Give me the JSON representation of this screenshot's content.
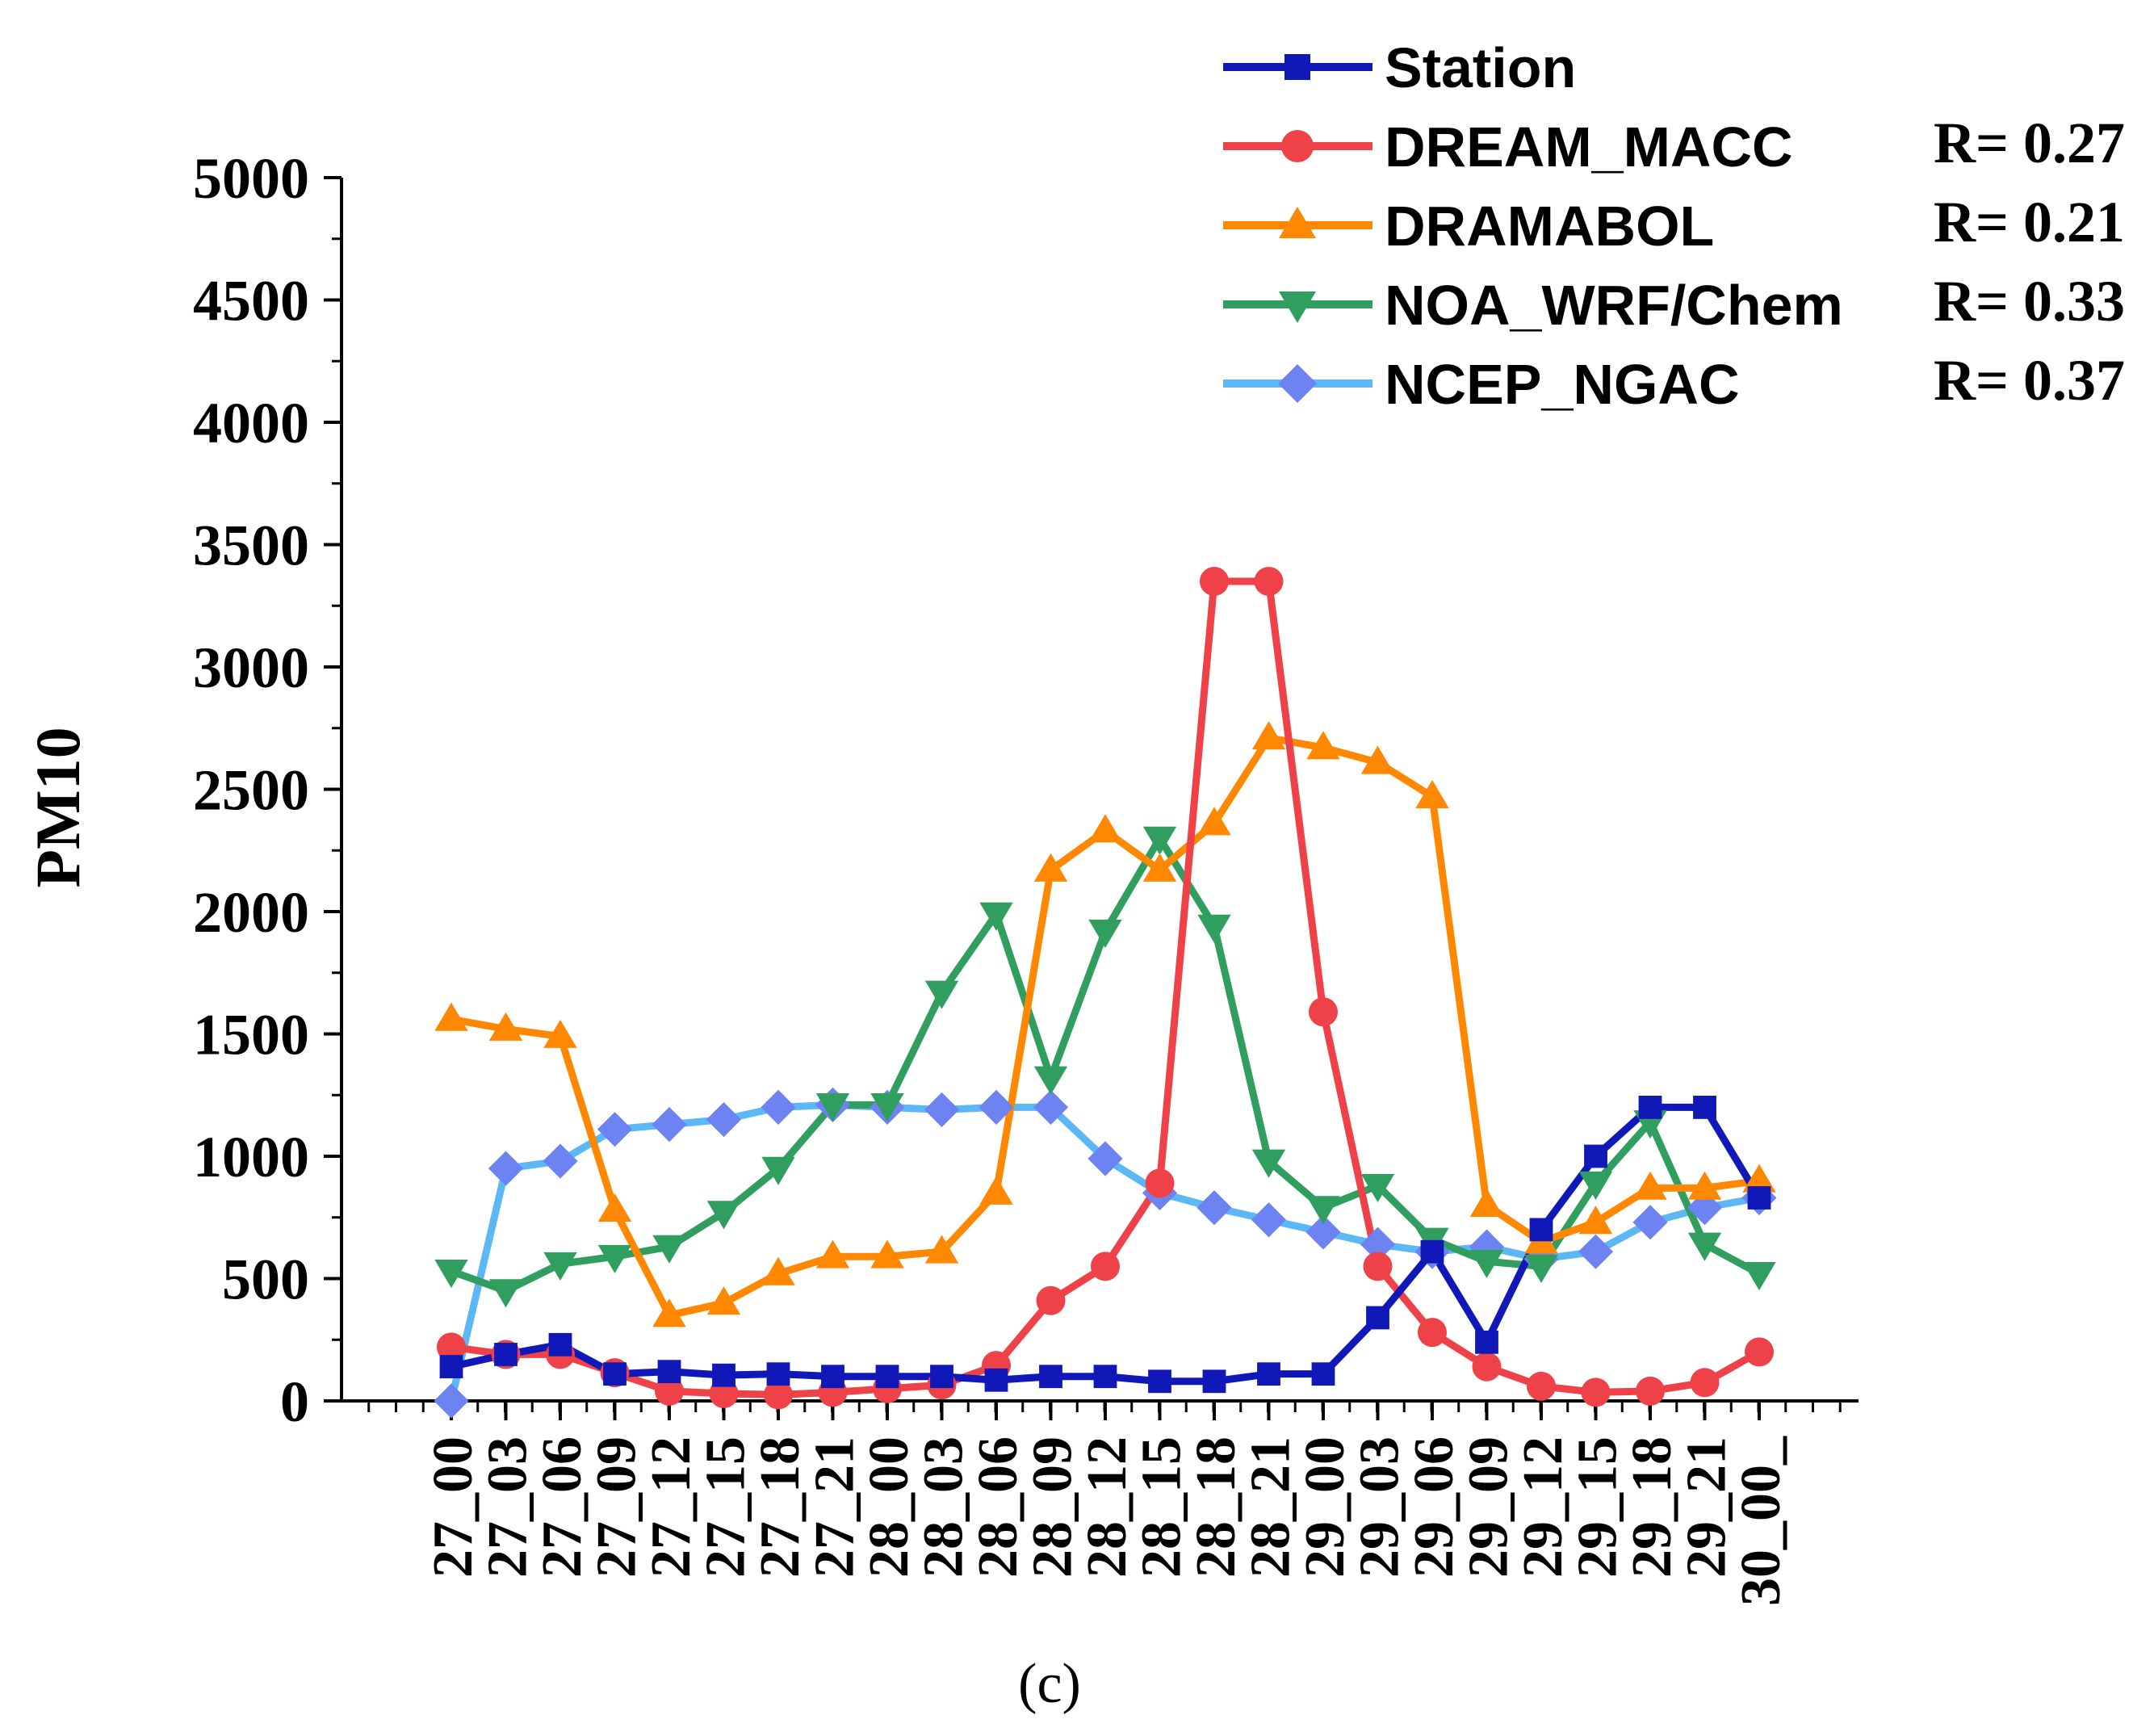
{
  "chart_data": {
    "type": "line",
    "title": "",
    "panel_label": "(c)",
    "xlabel": "",
    "ylabel": "PM10",
    "ylim": [
      0,
      5000
    ],
    "yticks": [
      "0",
      "500",
      "1000",
      "1500",
      "2000",
      "2500",
      "3000",
      "3500",
      "4000",
      "4500",
      "5000"
    ],
    "categories": [
      "27_00",
      "27_03",
      "27_06",
      "27_09",
      "27_12",
      "27_15",
      "27_18",
      "27_21",
      "28_00",
      "28_03",
      "28_06",
      "28_09",
      "28_12",
      "28_15",
      "28_18",
      "28_21",
      "29_00",
      "29_03",
      "29_06",
      "29_09",
      "29_12",
      "29_15",
      "29_18",
      "29_21",
      "30_00_"
    ],
    "legend_position": "top-right",
    "series": [
      {
        "name": "Station",
        "marker": "square",
        "color": "#1019b8",
        "r_label": "",
        "values": [
          140,
          190,
          230,
          110,
          120,
          105,
          110,
          100,
          100,
          100,
          85,
          100,
          100,
          80,
          80,
          110,
          110,
          340,
          610,
          240,
          700,
          1000,
          1200,
          1200,
          830
        ]
      },
      {
        "name": "DREAM_MACC",
        "marker": "circle",
        "color": "#ee4148",
        "r_label": "R= 0.27",
        "values": [
          220,
          190,
          190,
          115,
          40,
          30,
          25,
          35,
          50,
          65,
          145,
          410,
          550,
          890,
          3350,
          3350,
          1590,
          550,
          280,
          140,
          60,
          35,
          40,
          75,
          200
        ]
      },
      {
        "name": "DRAMABOL",
        "marker": "triangle-up",
        "color": "#ff8800",
        "r_label": "R= 0.21",
        "values": [
          1560,
          1520,
          1490,
          780,
          350,
          400,
          520,
          590,
          590,
          610,
          850,
          2170,
          2330,
          2170,
          2360,
          2710,
          2670,
          2610,
          2470,
          800,
          650,
          730,
          870,
          870,
          900
        ]
      },
      {
        "name": "NOA_WRF/Chem",
        "marker": "triangle-down",
        "color": "#2f9e5f",
        "r_label": "R= 0.33",
        "values": [
          530,
          450,
          560,
          590,
          630,
          770,
          950,
          1210,
          1210,
          1670,
          1990,
          1320,
          1920,
          2300,
          1940,
          980,
          790,
          880,
          660,
          570,
          550,
          890,
          1140,
          640,
          520
        ]
      },
      {
        "name": "NCEP_NGAC",
        "marker": "diamond",
        "color": "#5cb8f5",
        "r_label": "R= 0.37",
        "values": [
          0,
          950,
          980,
          1110,
          1130,
          1150,
          1200,
          1210,
          1200,
          1190,
          1200,
          1200,
          990,
          850,
          790,
          740,
          690,
          640,
          610,
          630,
          580,
          610,
          730,
          790,
          830
        ]
      }
    ]
  }
}
